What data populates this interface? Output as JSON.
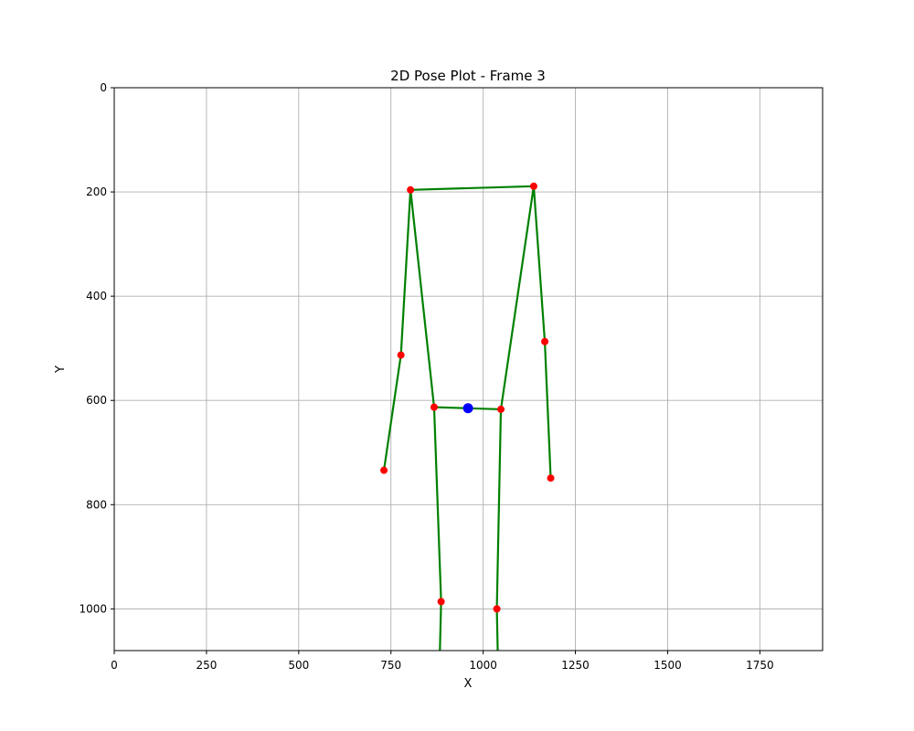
{
  "chart_data": {
    "type": "scatter",
    "title": "2D Pose Plot - Frame 3",
    "xlabel": "X",
    "ylabel": "Y",
    "xlim": [
      0,
      1920
    ],
    "ylim": [
      1080,
      0
    ],
    "y_inverted": true,
    "grid": true,
    "x_ticks": [
      0,
      250,
      500,
      750,
      1000,
      1250,
      1500,
      1750
    ],
    "y_ticks": [
      0,
      200,
      400,
      600,
      800,
      1000
    ],
    "keypoints": [
      {
        "x": 803,
        "y": 196
      },
      {
        "x": 1137,
        "y": 189
      },
      {
        "x": 777,
        "y": 513
      },
      {
        "x": 1167,
        "y": 487
      },
      {
        "x": 731,
        "y": 734
      },
      {
        "x": 1183,
        "y": 749
      },
      {
        "x": 867,
        "y": 613
      },
      {
        "x": 1048,
        "y": 617
      },
      {
        "x": 886,
        "y": 986
      },
      {
        "x": 1037,
        "y": 1000
      }
    ],
    "center_point": {
      "x": 959,
      "y": 615
    },
    "bones": [
      {
        "from": {
          "x": 803,
          "y": 196
        },
        "to": {
          "x": 1137,
          "y": 189
        }
      },
      {
        "from": {
          "x": 803,
          "y": 196
        },
        "to": {
          "x": 777,
          "y": 513
        }
      },
      {
        "from": {
          "x": 777,
          "y": 513
        },
        "to": {
          "x": 731,
          "y": 734
        }
      },
      {
        "from": {
          "x": 1137,
          "y": 189
        },
        "to": {
          "x": 1167,
          "y": 487
        }
      },
      {
        "from": {
          "x": 1167,
          "y": 487
        },
        "to": {
          "x": 1183,
          "y": 749
        }
      },
      {
        "from": {
          "x": 803,
          "y": 196
        },
        "to": {
          "x": 867,
          "y": 613
        }
      },
      {
        "from": {
          "x": 1137,
          "y": 189
        },
        "to": {
          "x": 1048,
          "y": 617
        }
      },
      {
        "from": {
          "x": 867,
          "y": 613
        },
        "to": {
          "x": 1048,
          "y": 617
        }
      },
      {
        "from": {
          "x": 867,
          "y": 613
        },
        "to": {
          "x": 886,
          "y": 986
        }
      },
      {
        "from": {
          "x": 886,
          "y": 986
        },
        "to": {
          "x": 882,
          "y": 1100
        }
      },
      {
        "from": {
          "x": 1048,
          "y": 617
        },
        "to": {
          "x": 1037,
          "y": 1000
        }
      },
      {
        "from": {
          "x": 1037,
          "y": 1000
        },
        "to": {
          "x": 1040,
          "y": 1100
        }
      }
    ],
    "colors": {
      "keypoint": "#ff0000",
      "center": "#0000ff",
      "bone": "#008000",
      "grid": "#b0b0b0",
      "axis": "#000000"
    }
  }
}
